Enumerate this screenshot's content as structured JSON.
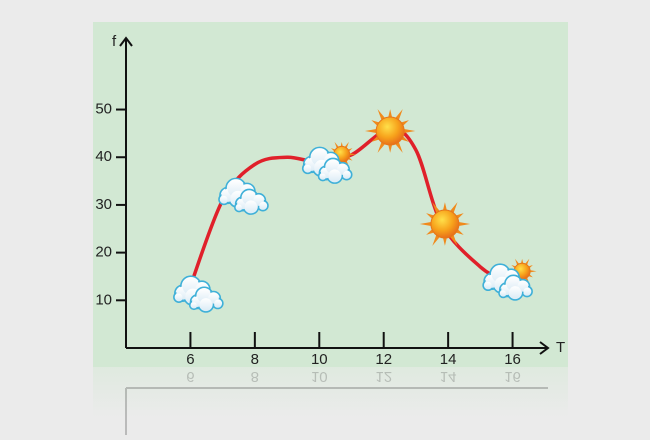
{
  "chart_data": {
    "type": "line",
    "x_label": "T",
    "y_label": "f",
    "series": [
      {
        "color": "#e0202a",
        "x": [
          6,
          7,
          8,
          9,
          10,
          11,
          12.2,
          13,
          13.8,
          15,
          15.8
        ],
        "values": [
          13,
          31,
          38.5,
          40,
          39,
          40.5,
          46,
          41.5,
          26,
          17,
          14
        ]
      }
    ],
    "xlim": [
      4,
      17.1
    ],
    "ylim": [
      0,
      65
    ],
    "xticks": [
      6,
      8,
      10,
      12,
      14,
      16
    ],
    "yticks": [
      10,
      20,
      30,
      40,
      50
    ],
    "markers": [
      {
        "icon": "cloud",
        "x": 6.2,
        "y": 11.5
      },
      {
        "icon": "cloud",
        "x": 7.6,
        "y": 32
      },
      {
        "icon": "cloud-sun",
        "x": 10.2,
        "y": 38.5
      },
      {
        "icon": "sun",
        "x": 12.2,
        "y": 45.5
      },
      {
        "icon": "sun",
        "x": 13.9,
        "y": 26
      },
      {
        "icon": "cloud-sun",
        "x": 15.8,
        "y": 14
      }
    ]
  }
}
